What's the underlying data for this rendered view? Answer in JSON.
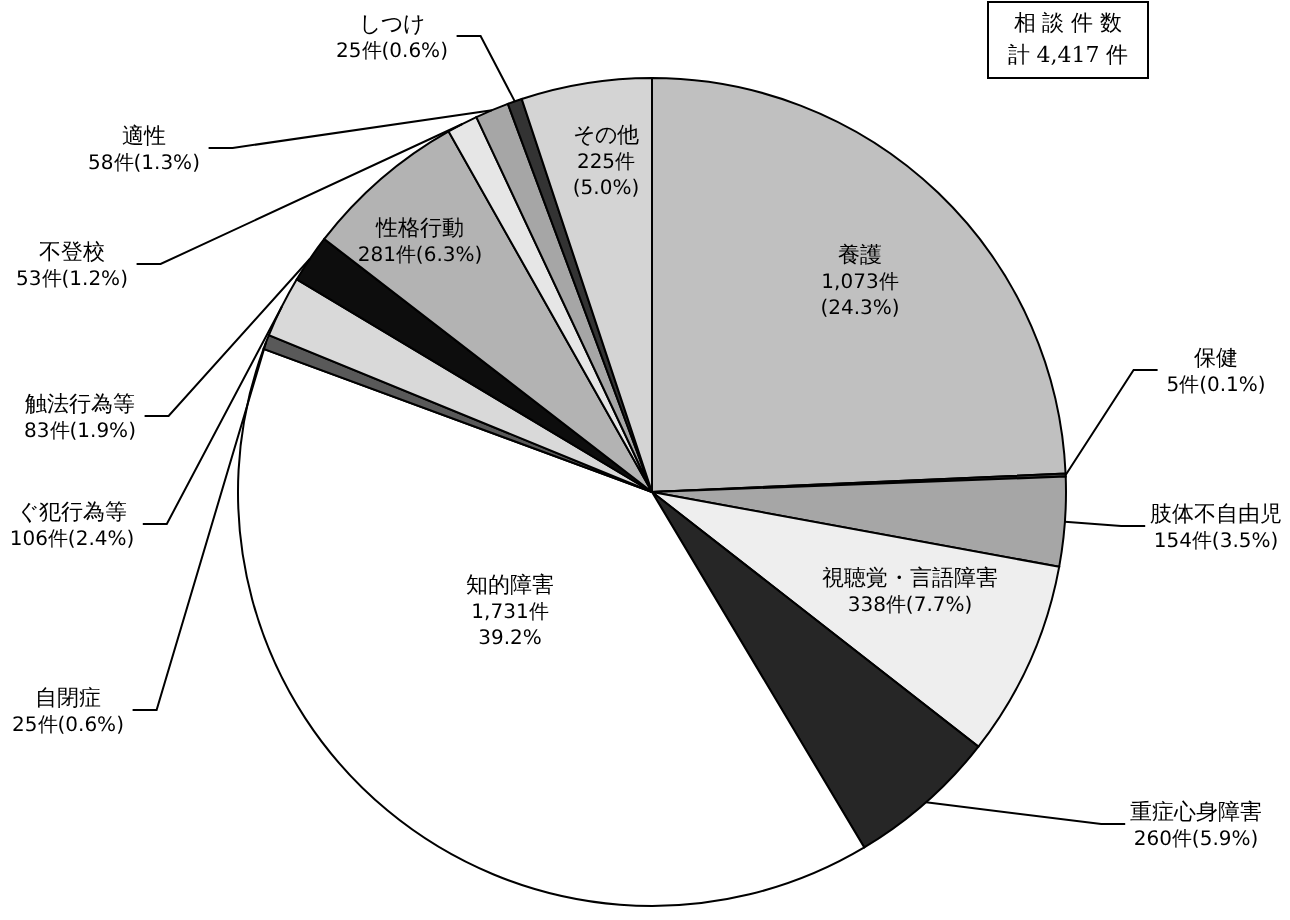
{
  "chart_data": {
    "type": "pie",
    "categories": [
      "養護",
      "保健",
      "肢体不自由児",
      "視聴覚・言語障害",
      "重症心身障害",
      "知的障害",
      "自閉症",
      "ぐ犯行為等",
      "触法行為等",
      "性格行動",
      "不登校",
      "適性",
      "しつけ",
      "その他"
    ],
    "values": [
      1073,
      5,
      154,
      338,
      260,
      1731,
      25,
      106,
      83,
      281,
      53,
      58,
      25,
      225
    ],
    "colors": [
      "#c0c0c0",
      "#404040",
      "#a6a6a6",
      "#eeeeee",
      "#262626",
      "#ffffff",
      "#595959",
      "#d9d9d9",
      "#0d0d0d",
      "#b3b3b3",
      "#e6e6e6",
      "#a6a6a6",
      "#333333",
      "#d4d4d4"
    ],
    "value_labels": [
      "1,073件\n(24.3%)",
      "5件(0.1%)",
      "154件(3.5%)",
      "338件(7.7%)",
      "260件(5.9%)",
      "1,731件\n39.2%",
      "25件(0.6%)",
      "106件(2.4%)",
      "83件(1.9%)",
      "281件(6.3%)",
      "53件(1.2%)",
      "58件(1.3%)",
      "25件(0.6%)",
      "225件\n(5.0%)"
    ],
    "annotations": [
      "相 談 件 数",
      "計 4,417 件"
    ]
  }
}
